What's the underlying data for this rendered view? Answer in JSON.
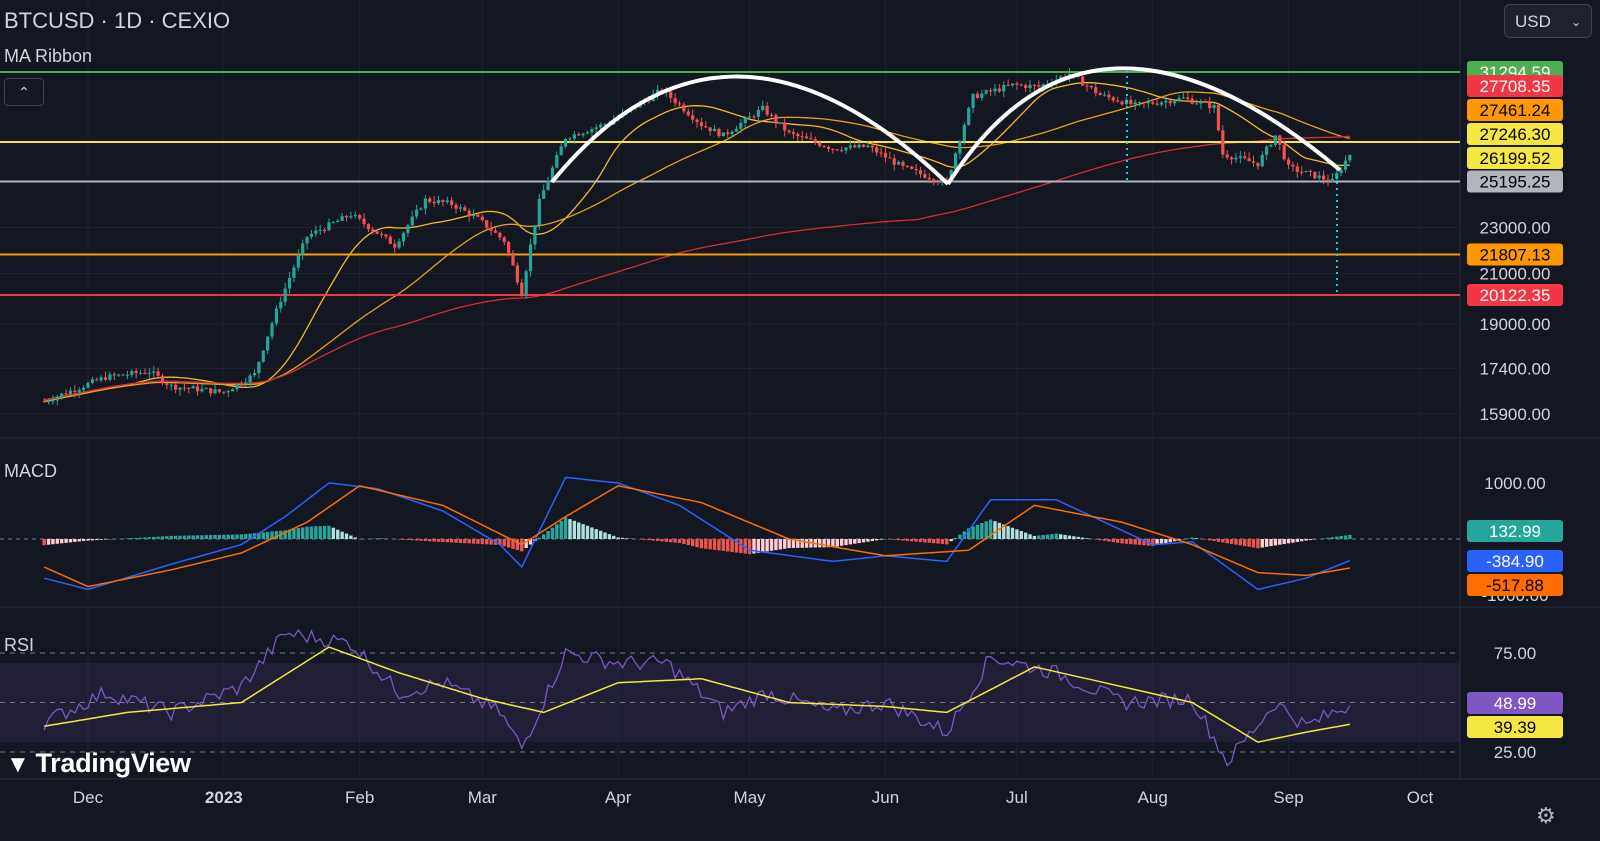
{
  "header": {
    "title": "BTCUSD · 1D · CEXIO",
    "indicator": "MA Ribbon",
    "currency": "USD",
    "collapse_icon": "chevron-up-icon"
  },
  "panes": {
    "macd_label": "MACD",
    "rsi_label": "RSI"
  },
  "brand": {
    "name": "TradingView"
  },
  "settings_icon": "gear-icon",
  "colors": {
    "bg": "#131722",
    "up": "#26a69a",
    "down": "#ef5350",
    "green": "#4caf50",
    "yellow": "#f5e642",
    "orange": "#ff9800",
    "red": "#f23645",
    "gray": "#b2b5be",
    "blue": "#2962ff",
    "macd_signal": "#ff6d00",
    "rsi": "#7e57c2",
    "rsi_ma": "#f5e642",
    "ma_fast": "#f7b731",
    "ma_mid": "#e8a020",
    "ma_slow": "#d32f2f"
  },
  "chart_data": {
    "type": "candlestick",
    "symbol": "BTCUSD",
    "interval": "1D",
    "exchange": "CEXIO",
    "x_labels": [
      "Dec",
      "2023",
      "Feb",
      "Mar",
      "Apr",
      "May",
      "Jun",
      "Jul",
      "Aug",
      "Sep",
      "Oct"
    ],
    "x_label_dates": [
      "2022-12-01",
      "2023-01-01",
      "2023-02-01",
      "2023-03-01",
      "2023-04-01",
      "2023-05-01",
      "2023-06-01",
      "2023-07-01",
      "2023-08-01",
      "2023-09-01",
      "2023-10-01"
    ],
    "price_ticks": [
      23000,
      21000,
      19000,
      17400,
      15900
    ],
    "horizontal_levels": [
      {
        "value": 31294.59,
        "label": "31294.59",
        "color": "#4caf50"
      },
      {
        "value": 27246.3,
        "label": "27246.30",
        "color": "#f5e642"
      },
      {
        "value": 25195.25,
        "label": "25195.25",
        "color": "#b2b5be"
      },
      {
        "value": 21807.13,
        "label": "21807.13",
        "color": "#ff9800"
      },
      {
        "value": 20122.35,
        "label": "20122.35",
        "color": "#f23645"
      }
    ],
    "ma_labels": [
      {
        "value": 27708.35,
        "label": "27708.35",
        "color": "#f23645"
      },
      {
        "value": 27461.24,
        "label": "27461.24",
        "color": "#ff9800"
      },
      {
        "value": 26199.52,
        "label": "26199.52",
        "color": "#f5e642"
      }
    ],
    "price_anchors": [
      [
        "2022-11-21",
        16300
      ],
      [
        "2022-12-05",
        17100
      ],
      [
        "2022-12-15",
        17300
      ],
      [
        "2022-12-20",
        16800
      ],
      [
        "2023-01-01",
        16600
      ],
      [
        "2023-01-08",
        17200
      ],
      [
        "2023-01-13",
        19500
      ],
      [
        "2023-01-20",
        22600
      ],
      [
        "2023-01-30",
        23600
      ],
      [
        "2023-02-09",
        22200
      ],
      [
        "2023-02-16",
        24300
      ],
      [
        "2023-02-22",
        24100
      ],
      [
        "2023-02-28",
        23400
      ],
      [
        "2023-03-06",
        22400
      ],
      [
        "2023-03-10",
        20200
      ],
      [
        "2023-03-14",
        24200
      ],
      [
        "2023-03-20",
        27500
      ],
      [
        "2023-03-30",
        28300
      ],
      [
        "2023-04-11",
        30200
      ],
      [
        "2023-04-20",
        28200
      ],
      [
        "2023-04-25",
        27600
      ],
      [
        "2023-05-04",
        29100
      ],
      [
        "2023-05-10",
        27700
      ],
      [
        "2023-05-20",
        26900
      ],
      [
        "2023-05-28",
        27000
      ],
      [
        "2023-06-05",
        25900
      ],
      [
        "2023-06-15",
        25100
      ],
      [
        "2023-06-21",
        29800
      ],
      [
        "2023-06-30",
        30500
      ],
      [
        "2023-07-06",
        30400
      ],
      [
        "2023-07-13",
        31200
      ],
      [
        "2023-07-20",
        29900
      ],
      [
        "2023-07-28",
        29300
      ],
      [
        "2023-08-08",
        29700
      ],
      [
        "2023-08-15",
        29200
      ],
      [
        "2023-08-17",
        26600
      ],
      [
        "2023-08-25",
        26100
      ],
      [
        "2023-08-29",
        27600
      ],
      [
        "2023-09-01",
        25900
      ],
      [
        "2023-09-11",
        25200
      ],
      [
        "2023-09-15",
        26600
      ]
    ],
    "macd": {
      "ticks": [
        1000,
        -1000
      ],
      "macd_value": "-384.90",
      "signal_value": "-517.88",
      "hist_value": "132.99",
      "macd_anchors": [
        [
          "2022-11-21",
          -700
        ],
        [
          "2022-12-01",
          -900
        ],
        [
          "2022-12-20",
          -450
        ],
        [
          "2023-01-05",
          -100
        ],
        [
          "2023-01-15",
          400
        ],
        [
          "2023-01-25",
          1000
        ],
        [
          "2023-02-05",
          900
        ],
        [
          "2023-02-20",
          500
        ],
        [
          "2023-03-05",
          -100
        ],
        [
          "2023-03-10",
          -500
        ],
        [
          "2023-03-20",
          1100
        ],
        [
          "2023-04-01",
          1000
        ],
        [
          "2023-04-15",
          600
        ],
        [
          "2023-05-01",
          -200
        ],
        [
          "2023-05-20",
          -400
        ],
        [
          "2023-06-01",
          -300
        ],
        [
          "2023-06-15",
          -400
        ],
        [
          "2023-06-25",
          700
        ],
        [
          "2023-07-10",
          700
        ],
        [
          "2023-08-01",
          -100
        ],
        [
          "2023-08-10",
          -50
        ],
        [
          "2023-08-25",
          -900
        ],
        [
          "2023-09-05",
          -700
        ],
        [
          "2023-09-15",
          -385
        ]
      ],
      "signal_anchors": [
        [
          "2022-11-21",
          -500
        ],
        [
          "2022-12-01",
          -850
        ],
        [
          "2022-12-20",
          -550
        ],
        [
          "2023-01-05",
          -250
        ],
        [
          "2023-01-20",
          300
        ],
        [
          "2023-02-01",
          950
        ],
        [
          "2023-02-20",
          600
        ],
        [
          "2023-03-10",
          -100
        ],
        [
          "2023-03-20",
          400
        ],
        [
          "2023-04-01",
          950
        ],
        [
          "2023-04-20",
          650
        ],
        [
          "2023-05-10",
          0
        ],
        [
          "2023-06-01",
          -300
        ],
        [
          "2023-06-20",
          -200
        ],
        [
          "2023-07-05",
          600
        ],
        [
          "2023-07-25",
          300
        ],
        [
          "2023-08-10",
          -100
        ],
        [
          "2023-08-25",
          -600
        ],
        [
          "2023-09-05",
          -650
        ],
        [
          "2023-09-15",
          -518
        ]
      ]
    },
    "rsi": {
      "ticks": [
        75,
        25
      ],
      "rsi_value": "48.99",
      "ma_value": "39.39",
      "band": [
        30,
        70
      ],
      "rsi_anchors": [
        [
          "2022-11-21",
          40
        ],
        [
          "2022-12-05",
          55
        ],
        [
          "2022-12-20",
          45
        ],
        [
          "2023-01-05",
          58
        ],
        [
          "2023-01-15",
          85
        ],
        [
          "2023-01-30",
          80
        ],
        [
          "2023-02-10",
          55
        ],
        [
          "2023-02-20",
          60
        ],
        [
          "2023-03-05",
          45
        ],
        [
          "2023-03-10",
          27
        ],
        [
          "2023-03-20",
          75
        ],
        [
          "2023-04-01",
          70
        ],
        [
          "2023-04-12",
          70
        ],
        [
          "2023-04-25",
          45
        ],
        [
          "2023-05-05",
          55
        ],
        [
          "2023-05-20",
          45
        ],
        [
          "2023-06-01",
          50
        ],
        [
          "2023-06-15",
          35
        ],
        [
          "2023-06-25",
          73
        ],
        [
          "2023-07-10",
          65
        ],
        [
          "2023-07-25",
          50
        ],
        [
          "2023-08-10",
          52
        ],
        [
          "2023-08-18",
          20
        ],
        [
          "2023-08-29",
          50
        ],
        [
          "2023-09-05",
          38
        ],
        [
          "2023-09-15",
          49
        ]
      ],
      "ma_anchors": [
        [
          "2022-11-21",
          38
        ],
        [
          "2022-12-10",
          45
        ],
        [
          "2023-01-05",
          50
        ],
        [
          "2023-01-25",
          78
        ],
        [
          "2023-02-10",
          65
        ],
        [
          "2023-03-01",
          52
        ],
        [
          "2023-03-15",
          45
        ],
        [
          "2023-04-01",
          60
        ],
        [
          "2023-04-20",
          62
        ],
        [
          "2023-05-10",
          50
        ],
        [
          "2023-06-01",
          48
        ],
        [
          "2023-06-15",
          45
        ],
        [
          "2023-07-05",
          68
        ],
        [
          "2023-07-25",
          58
        ],
        [
          "2023-08-10",
          50
        ],
        [
          "2023-08-25",
          30
        ],
        [
          "2023-09-05",
          35
        ],
        [
          "2023-09-15",
          39
        ]
      ]
    }
  }
}
